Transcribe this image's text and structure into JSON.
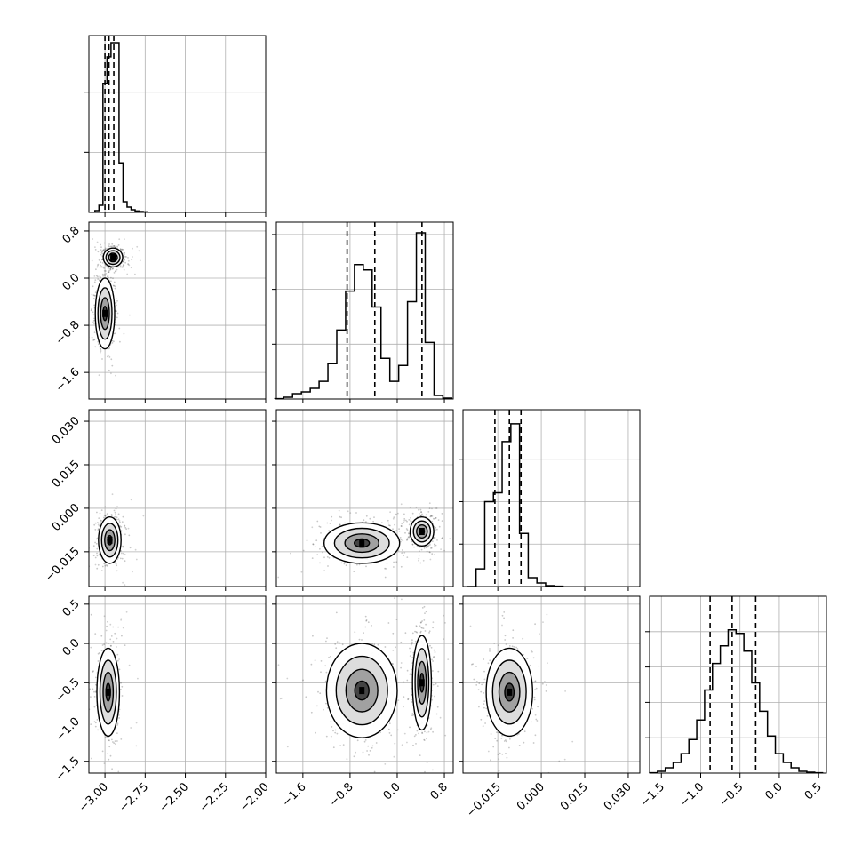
{
  "chart_data": {
    "type": "corner",
    "grid": true,
    "panels": [
      {
        "row": 0,
        "col": 0,
        "type": "histogram",
        "variable": 0,
        "bins": [
          {
            "x": -3.05,
            "y": 0.01
          },
          {
            "x": -3.025,
            "y": 0.04
          },
          {
            "x": -3.0,
            "y": 0.73
          },
          {
            "x": -2.975,
            "y": 0.88
          },
          {
            "x": -2.95,
            "y": 0.96
          },
          {
            "x": -2.925,
            "y": 0.96
          },
          {
            "x": -2.9,
            "y": 0.28
          },
          {
            "x": -2.875,
            "y": 0.06
          },
          {
            "x": -2.85,
            "y": 0.03
          },
          {
            "x": -2.825,
            "y": 0.015
          },
          {
            "x": -2.8,
            "y": 0.008
          },
          {
            "x": -2.775,
            "y": 0.005
          },
          {
            "x": -2.75,
            "y": 0.003
          }
        ],
        "quantiles": [
          -3.0,
          -2.975,
          -2.945
        ],
        "ylim": [
          0,
          1.0
        ],
        "yticks": [
          0.34,
          0.68
        ],
        "xticks": [
          -3.0,
          -2.75,
          -2.5,
          -2.25,
          -2.0
        ]
      },
      {
        "row": 1,
        "col": 1,
        "type": "histogram",
        "variable": 1,
        "bins": [
          {
            "x": -2.0,
            "y": 0.002
          },
          {
            "x": -1.85,
            "y": 0.01
          },
          {
            "x": -1.7,
            "y": 0.03
          },
          {
            "x": -1.55,
            "y": 0.04
          },
          {
            "x": -1.4,
            "y": 0.06
          },
          {
            "x": -1.25,
            "y": 0.1
          },
          {
            "x": -1.1,
            "y": 0.2
          },
          {
            "x": -0.95,
            "y": 0.39
          },
          {
            "x": -0.8,
            "y": 0.61
          },
          {
            "x": -0.65,
            "y": 0.76
          },
          {
            "x": -0.5,
            "y": 0.73
          },
          {
            "x": -0.35,
            "y": 0.52
          },
          {
            "x": -0.2,
            "y": 0.23
          },
          {
            "x": -0.05,
            "y": 0.1
          },
          {
            "x": 0.1,
            "y": 0.19
          },
          {
            "x": 0.25,
            "y": 0.55
          },
          {
            "x": 0.4,
            "y": 0.94
          },
          {
            "x": 0.55,
            "y": 0.32
          },
          {
            "x": 0.7,
            "y": 0.02
          },
          {
            "x": 0.85,
            "y": 0.005
          }
        ],
        "quantiles": [
          -0.85,
          -0.38,
          0.42
        ],
        "ylim": [
          0,
          1.0
        ],
        "yticks": [
          0.31,
          0.62,
          0.93
        ],
        "xticks": [
          -1.6,
          -0.8,
          0.0,
          0.8
        ]
      },
      {
        "row": 2,
        "col": 2,
        "type": "histogram",
        "variable": 2,
        "bins": [
          {
            "x": -0.024,
            "y": 0.0
          },
          {
            "x": -0.021,
            "y": 0.1
          },
          {
            "x": -0.018,
            "y": 0.48
          },
          {
            "x": -0.015,
            "y": 0.53
          },
          {
            "x": -0.012,
            "y": 0.82
          },
          {
            "x": -0.009,
            "y": 0.92
          },
          {
            "x": -0.006,
            "y": 0.3
          },
          {
            "x": -0.003,
            "y": 0.05
          },
          {
            "x": 0.0,
            "y": 0.02
          },
          {
            "x": 0.003,
            "y": 0.005
          },
          {
            "x": 0.006,
            "y": 0.002
          }
        ],
        "quantiles": [
          -0.016,
          -0.011,
          -0.007
        ],
        "ylim": [
          0,
          1.0
        ],
        "yticks": [
          0.24,
          0.48,
          0.72
        ],
        "xticks": [
          -0.015,
          0.0,
          0.015,
          0.03
        ]
      },
      {
        "row": 3,
        "col": 3,
        "type": "histogram",
        "variable": 3,
        "bins": [
          {
            "x": -1.6,
            "y": 0.002
          },
          {
            "x": -1.5,
            "y": 0.01
          },
          {
            "x": -1.4,
            "y": 0.03
          },
          {
            "x": -1.3,
            "y": 0.06
          },
          {
            "x": -1.2,
            "y": 0.11
          },
          {
            "x": -1.1,
            "y": 0.19
          },
          {
            "x": -1.0,
            "y": 0.3
          },
          {
            "x": -0.9,
            "y": 0.47
          },
          {
            "x": -0.8,
            "y": 0.62
          },
          {
            "x": -0.7,
            "y": 0.72
          },
          {
            "x": -0.6,
            "y": 0.81
          },
          {
            "x": -0.5,
            "y": 0.79
          },
          {
            "x": -0.4,
            "y": 0.69
          },
          {
            "x": -0.3,
            "y": 0.51
          },
          {
            "x": -0.2,
            "y": 0.35
          },
          {
            "x": -0.1,
            "y": 0.21
          },
          {
            "x": 0.0,
            "y": 0.11
          },
          {
            "x": 0.1,
            "y": 0.06
          },
          {
            "x": 0.2,
            "y": 0.03
          },
          {
            "x": 0.3,
            "y": 0.01
          },
          {
            "x": 0.4,
            "y": 0.005
          },
          {
            "x": 0.5,
            "y": 0.002
          }
        ],
        "quantiles": [
          -0.88,
          -0.6,
          -0.3
        ],
        "ylim": [
          0,
          1.0
        ],
        "yticks": [
          0.2,
          0.4,
          0.6,
          0.8
        ],
        "xticks": [
          -1.5,
          -1.0,
          -0.5,
          0.0,
          0.5
        ]
      },
      {
        "row": 1,
        "col": 0,
        "type": "scatter-contour",
        "x_variable": 0,
        "y_variable": 1,
        "xticks": [
          -3.0,
          -2.75,
          -2.5,
          -2.25,
          -2.0
        ],
        "yticks": [
          -1.6,
          -0.8,
          0.0,
          0.8
        ],
        "clusters": [
          {
            "center": [
              -2.95,
              0.35
            ],
            "spread": [
              0.03,
              0.08
            ]
          },
          {
            "center": [
              -3.0,
              -0.6
            ],
            "spread": [
              0.03,
              0.3
            ]
          }
        ]
      },
      {
        "row": 2,
        "col": 0,
        "type": "scatter-contour",
        "x_variable": 0,
        "y_variable": 2,
        "xticks": [
          -3.0,
          -2.75,
          -2.5,
          -2.25,
          -2.0
        ],
        "yticks": [
          -0.015,
          0.0,
          0.015,
          0.03
        ],
        "clusters": [
          {
            "center": [
              -2.97,
              -0.011
            ],
            "spread": [
              0.035,
              0.004
            ]
          }
        ]
      },
      {
        "row": 3,
        "col": 0,
        "type": "scatter-contour",
        "x_variable": 0,
        "y_variable": 3,
        "xticks": [
          -3.0,
          -2.75,
          -2.5,
          -2.25,
          -2.0
        ],
        "yticks": [
          -1.5,
          -1.0,
          -0.5,
          0.0,
          0.5
        ],
        "clusters": [
          {
            "center": [
              -2.98,
              -0.62
            ],
            "spread": [
              0.035,
              0.28
            ]
          }
        ]
      },
      {
        "row": 2,
        "col": 1,
        "type": "scatter-contour",
        "x_variable": 1,
        "y_variable": 2,
        "xticks": [
          -1.6,
          -0.8,
          0.0,
          0.8
        ],
        "yticks": [
          -0.015,
          0.0,
          0.015,
          0.03
        ],
        "clusters": [
          {
            "center": [
              -0.6,
              -0.012
            ],
            "spread": [
              0.32,
              0.0035
            ]
          },
          {
            "center": [
              0.42,
              -0.008
            ],
            "spread": [
              0.1,
              0.0025
            ]
          }
        ]
      },
      {
        "row": 3,
        "col": 1,
        "type": "scatter-contour",
        "x_variable": 1,
        "y_variable": 3,
        "xticks": [
          -1.6,
          -0.8,
          0.0,
          0.8
        ],
        "yticks": [
          -1.5,
          -1.0,
          -0.5,
          0.0,
          0.5
        ],
        "clusters": [
          {
            "center": [
              -0.6,
              -0.6
            ],
            "spread": [
              0.3,
              0.3
            ]
          },
          {
            "center": [
              0.42,
              -0.5
            ],
            "spread": [
              0.08,
              0.3
            ]
          }
        ]
      },
      {
        "row": 3,
        "col": 2,
        "type": "scatter-contour",
        "x_variable": 2,
        "y_variable": 3,
        "xticks": [
          -0.015,
          0.0,
          0.015,
          0.03
        ],
        "yticks": [
          -1.5,
          -1.0,
          -0.5,
          0.0,
          0.5
        ],
        "clusters": [
          {
            "center": [
              -0.011,
              -0.62
            ],
            "spread": [
              0.004,
              0.28
            ]
          }
        ]
      }
    ],
    "variables": [
      {
        "range": [
          -3.1,
          -2.0
        ],
        "ticks": [
          -3.0,
          -2.75,
          -2.5,
          -2.25,
          -2.0
        ],
        "tick_labels": [
          "−3.00",
          "−2.75",
          "−2.50",
          "−2.25",
          "−2.00"
        ]
      },
      {
        "range": [
          -2.05,
          0.95
        ],
        "ticks": [
          -1.6,
          -0.8,
          0.0,
          0.8
        ],
        "tick_labels": [
          "−1.6",
          "−0.8",
          "0.0",
          "0.8"
        ]
      },
      {
        "range": [
          -0.027,
          0.034
        ],
        "ticks": [
          -0.015,
          0.0,
          0.015,
          0.03
        ],
        "tick_labels": [
          "−0.015",
          "0.000",
          "0.015",
          "0.030"
        ]
      },
      {
        "range": [
          -1.65,
          0.6
        ],
        "ticks": [
          -1.5,
          -1.0,
          -0.5,
          0.0,
          0.5
        ],
        "tick_labels": [
          "−1.5",
          "−1.0",
          "−0.5",
          "0.0",
          "0.5"
        ]
      }
    ]
  }
}
